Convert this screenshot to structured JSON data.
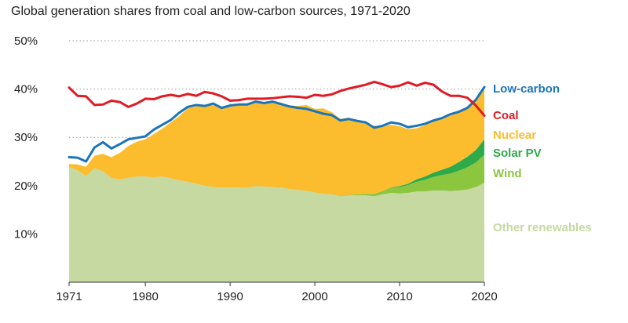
{
  "chart_data": {
    "type": "area",
    "title": "Global generation shares from coal and low-carbon sources, 1971-2020",
    "xlabel": "",
    "ylabel": "",
    "xlim": [
      1971,
      2020
    ],
    "ylim": [
      0,
      50
    ],
    "x_ticks": [
      1971,
      1980,
      1990,
      2000,
      2010,
      2020
    ],
    "y_ticks": [
      10,
      20,
      30,
      40,
      50
    ],
    "y_tick_labels": [
      "10%",
      "20%",
      "30%",
      "40%",
      "50%"
    ],
    "grid": "horizontal dotted",
    "legend_position": "right",
    "x": [
      1971,
      1972,
      1973,
      1974,
      1975,
      1976,
      1977,
      1978,
      1979,
      1980,
      1981,
      1982,
      1983,
      1984,
      1985,
      1986,
      1987,
      1988,
      1989,
      1990,
      1991,
      1992,
      1993,
      1994,
      1995,
      1996,
      1997,
      1998,
      1999,
      2000,
      2001,
      2002,
      2003,
      2004,
      2005,
      2006,
      2007,
      2008,
      2009,
      2010,
      2011,
      2012,
      2013,
      2014,
      2015,
      2016,
      2017,
      2018,
      2019,
      2020
    ],
    "stacked_series": [
      {
        "name": "Other renewables",
        "color": "#c5d9a0",
        "values": [
          23.9,
          23.2,
          22.0,
          23.6,
          23.0,
          21.6,
          21.3,
          21.6,
          21.9,
          21.9,
          21.7,
          21.9,
          21.5,
          21.1,
          20.8,
          20.4,
          20.0,
          19.7,
          19.6,
          19.6,
          19.6,
          19.5,
          19.9,
          19.8,
          19.7,
          19.6,
          19.3,
          19.1,
          18.9,
          18.6,
          18.3,
          18.2,
          17.8,
          18.0,
          18.0,
          18.0,
          17.8,
          18.2,
          18.5,
          18.4,
          18.5,
          18.8,
          18.8,
          19.0,
          19.0,
          18.9,
          19.0,
          19.2,
          19.7,
          20.6
        ]
      },
      {
        "name": "Wind",
        "color": "#8cc63f",
        "values": [
          0,
          0,
          0,
          0,
          0,
          0,
          0,
          0,
          0,
          0,
          0,
          0,
          0,
          0,
          0,
          0,
          0,
          0,
          0,
          0,
          0,
          0,
          0,
          0,
          0,
          0,
          0,
          0,
          0,
          0,
          0,
          0,
          0.1,
          0.1,
          0.2,
          0.3,
          0.5,
          0.7,
          1.0,
          1.3,
          1.6,
          2.0,
          2.4,
          2.8,
          3.2,
          3.6,
          4.1,
          4.6,
          5.1,
          5.8
        ]
      },
      {
        "name": "Solar PV",
        "color": "#2eaa4a",
        "values": [
          0,
          0,
          0,
          0,
          0,
          0,
          0,
          0,
          0,
          0,
          0,
          0,
          0,
          0,
          0,
          0,
          0,
          0,
          0,
          0,
          0,
          0,
          0,
          0,
          0,
          0,
          0,
          0,
          0,
          0,
          0,
          0,
          0,
          0,
          0,
          0,
          0,
          0,
          0.1,
          0.2,
          0.3,
          0.5,
          0.7,
          0.9,
          1.1,
          1.4,
          1.8,
          2.2,
          2.6,
          3.2
        ]
      },
      {
        "name": "Nuclear",
        "color": "#fbbd2e",
        "values": [
          0.6,
          1.2,
          1.9,
          2.6,
          3.6,
          4.3,
          5.5,
          6.6,
          7.2,
          7.7,
          9.0,
          9.9,
          11.6,
          13.3,
          15.2,
          16.0,
          16.6,
          17.0,
          16.4,
          16.9,
          17.1,
          17.4,
          17.5,
          17.2,
          17.6,
          17.6,
          17.3,
          17.4,
          17.8,
          17.3,
          17.7,
          17.0,
          15.9,
          16.0,
          15.0,
          14.6,
          14.1,
          13.4,
          13.0,
          12.4,
          11.3,
          10.6,
          10.6,
          10.8,
          10.6,
          10.6,
          10.4,
          10.2,
          10.2,
          10.4
        ]
      }
    ],
    "lines": [
      {
        "name": "Low-carbon",
        "color": "#1a75bb",
        "values": [
          25.9,
          25.8,
          25.0,
          27.9,
          29.0,
          27.7,
          28.6,
          29.6,
          29.9,
          30.2,
          31.6,
          32.6,
          33.6,
          35.1,
          36.3,
          36.7,
          36.5,
          37.0,
          36.1,
          36.6,
          36.8,
          36.8,
          37.4,
          37.1,
          37.4,
          36.9,
          36.4,
          36.1,
          35.9,
          35.4,
          34.9,
          34.6,
          33.5,
          33.8,
          33.4,
          33.1,
          32.0,
          32.4,
          33.1,
          32.8,
          32.1,
          32.4,
          32.8,
          33.5,
          34.0,
          34.8,
          35.3,
          36.1,
          37.8,
          40.4
        ]
      },
      {
        "name": "Coal",
        "color": "#e01b24",
        "values": [
          40.3,
          38.6,
          38.5,
          36.7,
          36.8,
          37.6,
          37.3,
          36.3,
          37.0,
          38.0,
          37.9,
          38.5,
          38.8,
          38.5,
          39.0,
          38.6,
          39.4,
          39.1,
          38.5,
          37.6,
          37.7,
          38.0,
          38.0,
          38.0,
          38.1,
          38.3,
          38.5,
          38.4,
          38.2,
          38.8,
          38.6,
          38.9,
          39.6,
          40.1,
          40.5,
          40.9,
          41.5,
          41.0,
          40.4,
          40.7,
          41.4,
          40.7,
          41.3,
          40.9,
          39.5,
          38.6,
          38.6,
          38.2,
          36.6,
          34.5
        ]
      }
    ],
    "legend": [
      {
        "name": "Low-carbon",
        "color": "#1a75bb"
      },
      {
        "name": "Coal",
        "color": "#e01b24"
      },
      {
        "name": "Nuclear",
        "color": "#fbbd2e"
      },
      {
        "name": "Solar PV",
        "color": "#2eaa4a"
      },
      {
        "name": "Wind",
        "color": "#8cc63f"
      },
      {
        "name": "Other renewables",
        "color": "#c5d9a0"
      }
    ]
  }
}
